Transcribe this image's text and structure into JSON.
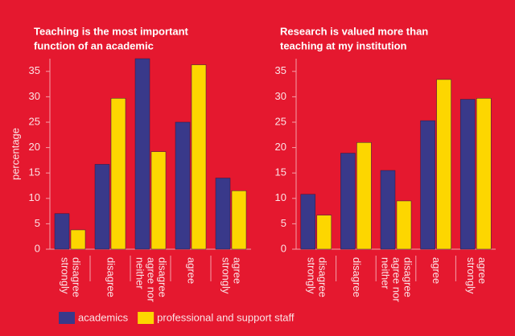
{
  "chart_data": [
    {
      "type": "bar",
      "title": [
        "Teaching is the most important",
        "function of an academic"
      ],
      "ylabel": "percentage",
      "categories": [
        [
          "strongly",
          "disagree"
        ],
        [
          "disagree"
        ],
        [
          "neither",
          "agree nor",
          "disagree"
        ],
        [
          "agree"
        ],
        [
          "strongly",
          "agree"
        ]
      ],
      "series": [
        {
          "name": "academics",
          "color": "#39398a",
          "values": [
            7,
            16.7,
            37.5,
            25,
            14
          ]
        },
        {
          "name": "professional and support staff",
          "color": "#fdd600",
          "values": [
            3.8,
            29.7,
            19.2,
            36.3,
            11.5
          ]
        }
      ],
      "ylim": [
        0,
        37.5
      ],
      "yticks": [
        0,
        5,
        10,
        15,
        20,
        25,
        30,
        35
      ]
    },
    {
      "type": "bar",
      "title": [
        "Research is valued more than",
        "teaching at my institution"
      ],
      "categories": [
        [
          "strongly",
          "disagree"
        ],
        [
          "disagree"
        ],
        [
          "neither",
          "agree nor",
          "disagree"
        ],
        [
          "agree"
        ],
        [
          "strongly",
          "agree"
        ]
      ],
      "series": [
        {
          "color": "#39398a",
          "values": [
            10.8,
            18.9,
            15.5,
            25.3,
            29.5
          ]
        },
        {
          "color": "#fdd600",
          "values": [
            6.7,
            21,
            9.5,
            33.4,
            29.7
          ]
        }
      ],
      "ylim": [
        0,
        37.5
      ],
      "yticks": [
        0,
        5,
        10,
        15,
        20,
        25,
        30,
        35
      ]
    }
  ]
}
